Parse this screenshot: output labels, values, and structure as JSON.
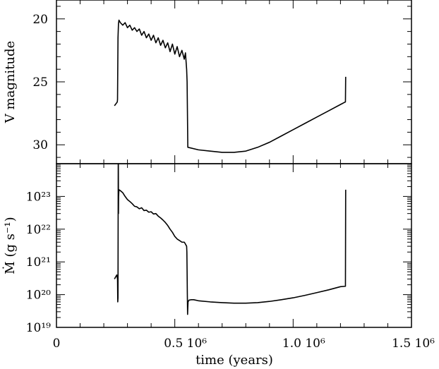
{
  "chart_data": [
    {
      "type": "line",
      "panel": "top",
      "xlabel": "",
      "ylabel": "V magnitude",
      "xlim": [
        0,
        1500000
      ],
      "ylim": [
        31.5,
        18.5
      ],
      "y_inverted": true,
      "y_ticks": [
        {
          "value": 20,
          "label": "20"
        },
        {
          "value": 25,
          "label": "25"
        },
        {
          "value": 30,
          "label": "30"
        }
      ],
      "series": [
        {
          "color": "#000000",
          "x": [
            245000,
            257000,
            258000,
            260000,
            262000,
            264000,
            270000,
            280000,
            290000,
            300000,
            310000,
            320000,
            330000,
            340000,
            350000,
            360000,
            370000,
            380000,
            390000,
            400000,
            410000,
            420000,
            430000,
            440000,
            450000,
            460000,
            470000,
            480000,
            490000,
            500000,
            510000,
            520000,
            530000,
            540000,
            545000,
            550000,
            552000,
            555000,
            556000,
            600000,
            650000,
            700000,
            750000,
            800000,
            850000,
            900000,
            950000,
            1000000,
            1050000,
            1100000,
            1150000,
            1200000,
            1220000,
            1221000,
            1222000
          ],
          "y": [
            26.9,
            26.6,
            26.4,
            21.5,
            20.4,
            20.1,
            20.3,
            20.5,
            20.3,
            20.7,
            20.5,
            20.9,
            20.7,
            21.0,
            20.8,
            21.3,
            21.0,
            21.5,
            21.2,
            21.7,
            21.3,
            21.9,
            21.5,
            22.1,
            21.7,
            22.3,
            21.9,
            22.6,
            22.0,
            22.8,
            22.2,
            23.0,
            22.5,
            23.2,
            22.7,
            24.0,
            25.0,
            30.2,
            30.2,
            30.4,
            30.5,
            30.6,
            30.6,
            30.5,
            30.2,
            29.8,
            29.3,
            28.8,
            28.3,
            27.8,
            27.3,
            26.8,
            26.6,
            26.6,
            24.6
          ]
        }
      ]
    },
    {
      "type": "line",
      "panel": "bottom",
      "xlabel": "time (years)",
      "ylabel": "Ṁ (g s⁻¹)",
      "y_scale": "log",
      "xlim": [
        0,
        1500000
      ],
      "ylim": [
        1e+19,
        1e+24
      ],
      "x_ticks": [
        {
          "value": 0,
          "label": "0"
        },
        {
          "value": 500000,
          "label": "0.5 10⁶"
        },
        {
          "value": 1000000,
          "label": "1.0 10⁶"
        },
        {
          "value": 1500000,
          "label": "1.5 10⁶"
        }
      ],
      "y_ticks": [
        {
          "value": 1e+19,
          "label": "10¹⁹"
        },
        {
          "value": 1e+20,
          "label": "10²⁰"
        },
        {
          "value": 1e+21,
          "label": "10²¹"
        },
        {
          "value": 1e+22,
          "label": "10²²"
        },
        {
          "value": 1e+23,
          "label": "10²³"
        }
      ],
      "series": [
        {
          "color": "#000000",
          "x": [
            245000,
            255000,
            258000,
            259000,
            260000,
            261000,
            261500,
            262000,
            262500,
            264000,
            270000,
            280000,
            290000,
            300000,
            310000,
            320000,
            330000,
            340000,
            350000,
            360000,
            370000,
            380000,
            390000,
            400000,
            410000,
            420000,
            430000,
            440000,
            450000,
            460000,
            470000,
            480000,
            490000,
            500000,
            510000,
            520000,
            530000,
            540000,
            545000,
            550000,
            551000,
            552000,
            553000,
            554000,
            555000,
            556000,
            560000,
            570000,
            580000,
            600000,
            650000,
            700000,
            750000,
            800000,
            850000,
            900000,
            950000,
            1000000,
            1050000,
            1100000,
            1150000,
            1200000,
            1220000,
            1221000,
            1222000
          ],
          "y": [
            3e+20,
            4e+20,
            3e+20,
            6e+19,
            8e+19,
            1e+24,
            1e+24,
            3e+22,
            1e+23,
            1.6e+23,
            1.5e+23,
            1.3e+23,
            1e+23,
            8e+22,
            7e+22,
            6e+22,
            5e+22,
            4.8e+22,
            4.2e+22,
            4.5e+22,
            3.7e+22,
            3.8e+22,
            3.3e+22,
            3.4e+22,
            2.9e+22,
            3e+22,
            2.5e+22,
            2.2e+22,
            1.9e+22,
            1.6e+22,
            1.3e+22,
            1e+22,
            8e+21,
            6e+21,
            5e+21,
            4.5e+21,
            4e+21,
            4e+21,
            3.5e+21,
            3e+21,
            2e+21,
            5e+20,
            1e+20,
            2.5e+19,
            4e+19,
            6e+19,
            6.8e+19,
            7e+19,
            7e+19,
            6.5e+19,
            6e+19,
            5.7e+19,
            5.5e+19,
            5.5e+19,
            5.7e+19,
            6.2e+19,
            7e+19,
            8e+19,
            9.5e+19,
            1.15e+20,
            1.4e+20,
            1.75e+20,
            1.8e+20,
            1.8e+20,
            1.6e+23
          ]
        }
      ]
    }
  ]
}
